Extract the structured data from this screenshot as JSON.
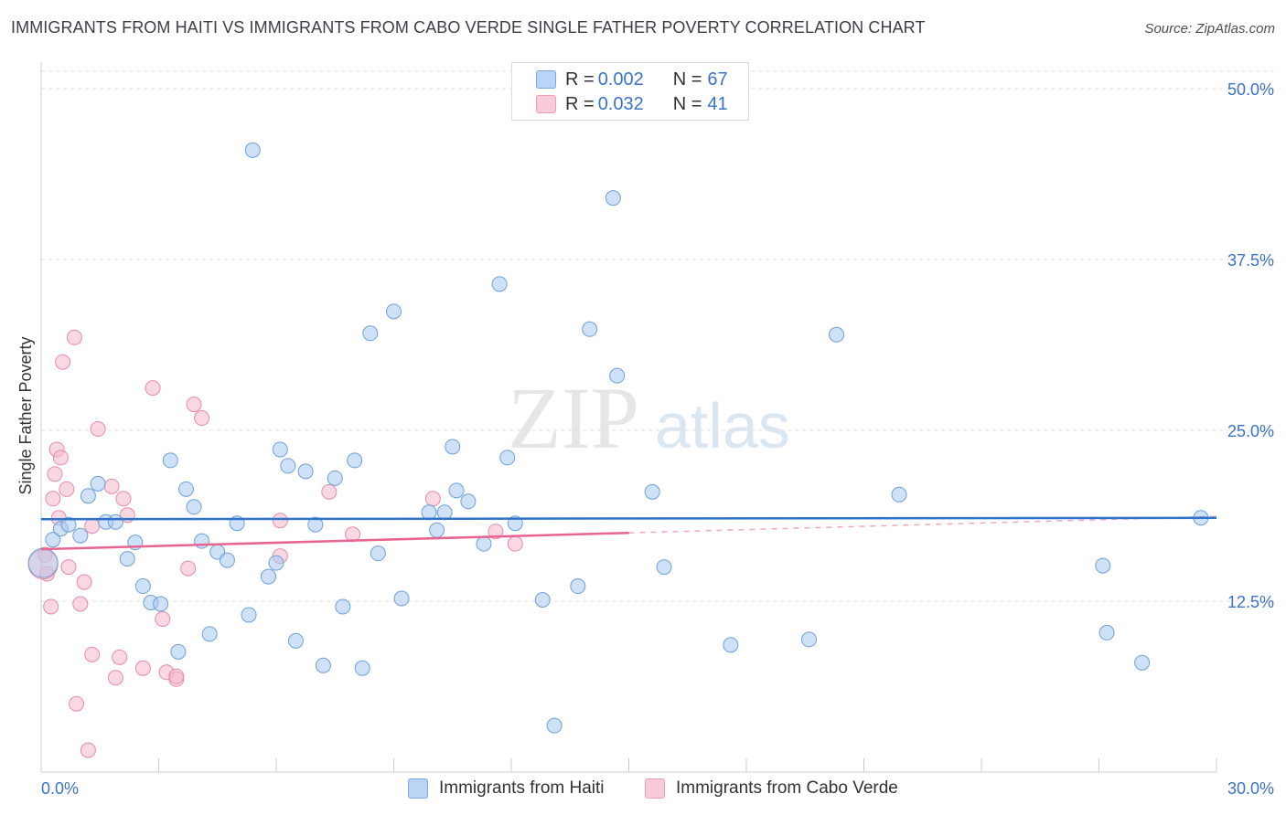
{
  "header": {
    "title": "IMMIGRANTS FROM HAITI VS IMMIGRANTS FROM CABO VERDE SINGLE FATHER POVERTY CORRELATION CHART",
    "source": "Source: ZipAtlas.com"
  },
  "legend": {
    "rows": [
      {
        "r_label": "R = ",
        "r_value": "0.002",
        "n_label": "N = ",
        "n_value": "67",
        "color": "#a8c8f0"
      },
      {
        "r_label": "R = ",
        "r_value": "0.032",
        "n_label": "N = ",
        "n_value": "41",
        "color": "#f5b8cb"
      }
    ]
  },
  "watermark": {
    "part1": "ZIP",
    "part2": "atlas"
  },
  "chart_data": {
    "type": "scatter",
    "title": "IMMIGRANTS FROM HAITI VS IMMIGRANTS FROM CABO VERDE SINGLE FATHER POVERTY CORRELATION CHART",
    "xlabel": "",
    "ylabel": "Single Father Poverty",
    "xlim": [
      0,
      30
    ],
    "ylim": [
      0,
      52
    ],
    "x_tick_labels": [
      "0.0%",
      "30.0%"
    ],
    "y_ticks": [
      12.5,
      25.0,
      37.5,
      50.0
    ],
    "y_tick_labels": [
      "12.5%",
      "25.0%",
      "37.5%",
      "50.0%"
    ],
    "grid": true,
    "legend_position": "top-center",
    "series": [
      {
        "name": "Immigrants from Haiti",
        "color": "#a8c8f0",
        "stroke": "#6f9fd8",
        "trend": {
          "x": [
            0,
            30
          ],
          "y": [
            18.5,
            18.6
          ],
          "color": "#2f73c9"
        },
        "points": [
          [
            0.3,
            17.0
          ],
          [
            0.5,
            17.8
          ],
          [
            0.7,
            18.1
          ],
          [
            1.0,
            17.3
          ],
          [
            1.2,
            20.2
          ],
          [
            1.45,
            21.1
          ],
          [
            1.65,
            18.3
          ],
          [
            1.9,
            18.3
          ],
          [
            2.2,
            15.6
          ],
          [
            2.4,
            16.8
          ],
          [
            2.6,
            13.6
          ],
          [
            2.8,
            12.4
          ],
          [
            3.05,
            12.3
          ],
          [
            3.3,
            22.8
          ],
          [
            3.5,
            8.8
          ],
          [
            3.7,
            20.7
          ],
          [
            3.9,
            19.4
          ],
          [
            4.1,
            16.9
          ],
          [
            4.3,
            10.1
          ],
          [
            4.5,
            16.1
          ],
          [
            4.75,
            15.5
          ],
          [
            5.0,
            18.2
          ],
          [
            5.3,
            11.5
          ],
          [
            5.4,
            45.5
          ],
          [
            5.8,
            14.3
          ],
          [
            6.0,
            15.3
          ],
          [
            6.1,
            23.6
          ],
          [
            6.3,
            22.4
          ],
          [
            6.5,
            9.6
          ],
          [
            6.75,
            22.0
          ],
          [
            7.0,
            18.1
          ],
          [
            7.2,
            7.8
          ],
          [
            7.5,
            21.5
          ],
          [
            7.7,
            12.1
          ],
          [
            8.0,
            22.8
          ],
          [
            8.2,
            7.6
          ],
          [
            8.4,
            32.1
          ],
          [
            8.6,
            16.0
          ],
          [
            9.0,
            33.7
          ],
          [
            9.2,
            12.7
          ],
          [
            9.9,
            19.0
          ],
          [
            10.1,
            17.7
          ],
          [
            10.3,
            19.0
          ],
          [
            10.5,
            23.8
          ],
          [
            10.6,
            20.6
          ],
          [
            10.9,
            19.8
          ],
          [
            11.3,
            16.7
          ],
          [
            11.7,
            35.7
          ],
          [
            11.9,
            23.0
          ],
          [
            12.1,
            18.2
          ],
          [
            12.8,
            12.6
          ],
          [
            13.1,
            3.4
          ],
          [
            13.7,
            13.6
          ],
          [
            14.0,
            32.4
          ],
          [
            14.7,
            29.0
          ],
          [
            14.6,
            42.0
          ],
          [
            15.6,
            20.5
          ],
          [
            15.9,
            15.0
          ],
          [
            17.6,
            9.3
          ],
          [
            19.6,
            9.7
          ],
          [
            20.3,
            32.0
          ],
          [
            21.9,
            20.3
          ],
          [
            27.1,
            15.1
          ],
          [
            27.2,
            10.2
          ],
          [
            28.1,
            8.0
          ],
          [
            29.6,
            18.6
          ],
          [
            0.05,
            15.3
          ]
        ]
      },
      {
        "name": "Immigrants from Cabo Verde",
        "color": "#f5b8cb",
        "stroke": "#e88aa8",
        "trend": {
          "x": [
            0,
            15
          ],
          "y": [
            16.3,
            17.5
          ],
          "color": "#e8638f",
          "dash_extension": {
            "x": [
              15,
              30
            ],
            "y": [
              17.5,
              18.7
            ]
          }
        },
        "points": [
          [
            0.1,
            15.9
          ],
          [
            0.15,
            14.5
          ],
          [
            0.25,
            12.1
          ],
          [
            0.3,
            20.0
          ],
          [
            0.35,
            21.8
          ],
          [
            0.4,
            23.6
          ],
          [
            0.45,
            18.6
          ],
          [
            0.5,
            23.0
          ],
          [
            0.55,
            30.0
          ],
          [
            0.65,
            20.7
          ],
          [
            0.7,
            15.0
          ],
          [
            0.85,
            31.8
          ],
          [
            0.9,
            5.0
          ],
          [
            1.0,
            12.3
          ],
          [
            1.1,
            13.9
          ],
          [
            1.2,
            1.6
          ],
          [
            1.3,
            18.0
          ],
          [
            1.3,
            8.6
          ],
          [
            1.45,
            25.1
          ],
          [
            1.8,
            20.9
          ],
          [
            1.9,
            6.9
          ],
          [
            2.0,
            8.4
          ],
          [
            2.1,
            20.0
          ],
          [
            2.2,
            18.8
          ],
          [
            2.6,
            7.6
          ],
          [
            2.85,
            28.1
          ],
          [
            3.1,
            11.2
          ],
          [
            3.2,
            7.3
          ],
          [
            3.45,
            6.8
          ],
          [
            3.45,
            7.0
          ],
          [
            3.75,
            14.9
          ],
          [
            3.9,
            26.9
          ],
          [
            4.1,
            25.9
          ],
          [
            6.1,
            18.4
          ],
          [
            6.1,
            15.8
          ],
          [
            7.35,
            20.5
          ],
          [
            7.95,
            17.4
          ],
          [
            10.0,
            20.0
          ],
          [
            11.6,
            17.6
          ],
          [
            12.1,
            16.7
          ],
          [
            0.05,
            15.2
          ]
        ]
      }
    ]
  },
  "bottom_legend": [
    {
      "label": "Immigrants from Haiti",
      "color": "#a8c8f0"
    },
    {
      "label": "Immigrants from Cabo Verde",
      "color": "#f5b8cb"
    }
  ]
}
